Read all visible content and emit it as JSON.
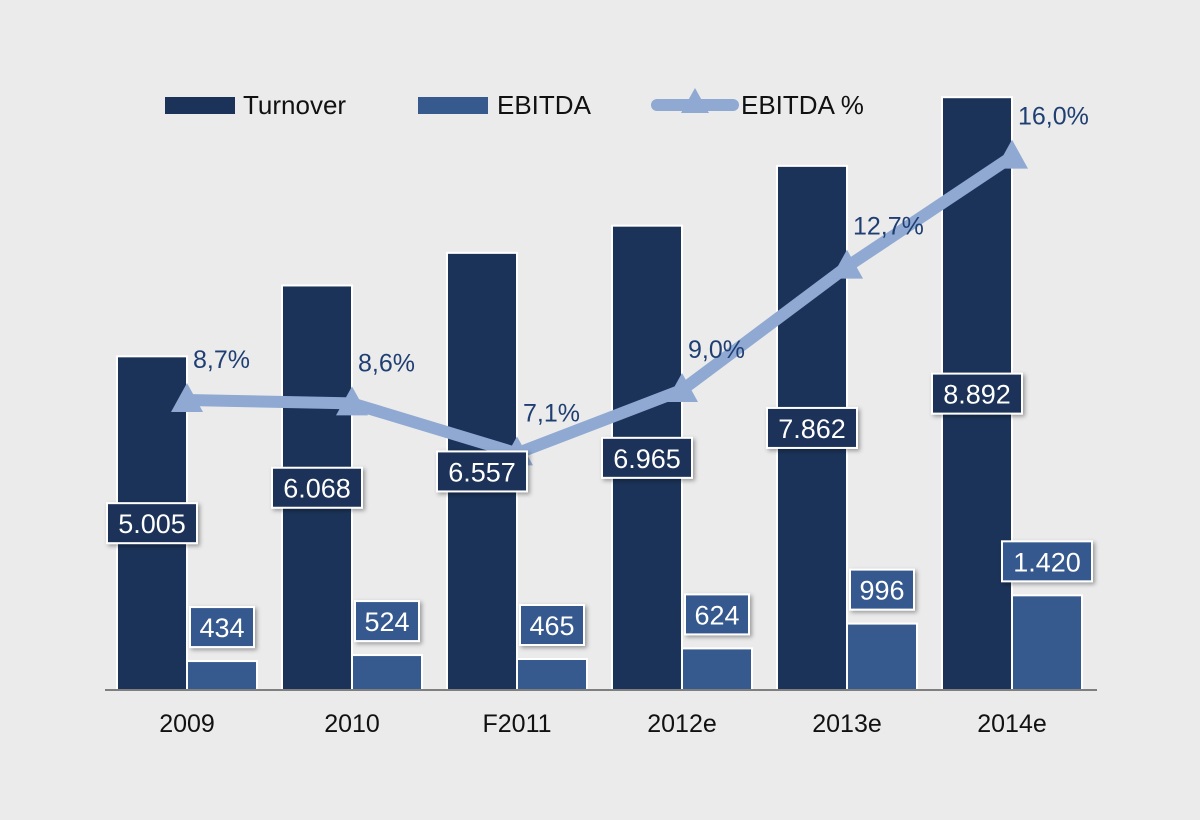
{
  "colors": {
    "background": "#ebebeb",
    "turnover": "#1b3358",
    "ebitda": "#36598e",
    "ebitda_pct": "#8fa9d3",
    "pct_label": "#1f3f73",
    "axis": "#7f7f7f"
  },
  "legend": {
    "turnover": "Turnover",
    "ebitda": "EBITDA",
    "ebitda_pct": "EBITDA %"
  },
  "chart_data": {
    "type": "bar",
    "categories": [
      "2009",
      "2010",
      "F2011",
      "2012e",
      "2013e",
      "2014e"
    ],
    "series": [
      {
        "name": "Turnover",
        "kind": "bar",
        "values": [
          5005,
          6068,
          6557,
          6965,
          7862,
          8892
        ],
        "labels": [
          "5.005",
          "6.068",
          "6.557",
          "6.965",
          "7.862",
          "8.892"
        ]
      },
      {
        "name": "EBITDA",
        "kind": "bar",
        "values": [
          434,
          524,
          465,
          624,
          996,
          1420
        ],
        "labels": [
          "434",
          "524",
          "465",
          "624",
          "996",
          "1.420"
        ]
      },
      {
        "name": "EBITDA %",
        "kind": "line",
        "marker": "triangle",
        "axis": "secondary",
        "values": [
          8.7,
          8.6,
          7.1,
          9.0,
          12.7,
          16.0
        ],
        "labels": [
          "8,7%",
          "8,6%",
          "7,1%",
          "9,0%",
          "12,7%",
          "16,0%"
        ]
      }
    ],
    "title": "",
    "xlabel": "",
    "ylabel": "",
    "ylim": [
      0,
      9000
    ],
    "y2lim": [
      0,
      18
    ],
    "grid": false,
    "legend_position": "top"
  }
}
